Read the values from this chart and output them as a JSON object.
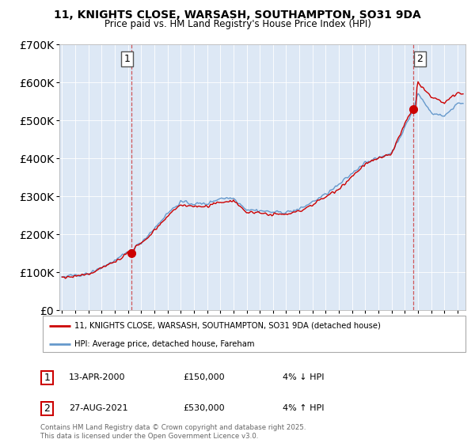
{
  "title_line1": "11, KNIGHTS CLOSE, WARSASH, SOUTHAMPTON, SO31 9DA",
  "title_line2": "Price paid vs. HM Land Registry's House Price Index (HPI)",
  "legend_label1": "11, KNIGHTS CLOSE, WARSASH, SOUTHAMPTON, SO31 9DA (detached house)",
  "legend_label2": "HPI: Average price, detached house, Fareham",
  "sale1_date": "13-APR-2000",
  "sale1_price": "£150,000",
  "sale1_hpi": "4% ↓ HPI",
  "sale2_date": "27-AUG-2021",
  "sale2_price": "£530,000",
  "sale2_hpi": "4% ↑ HPI",
  "footer": "Contains HM Land Registry data © Crown copyright and database right 2025.\nThis data is licensed under the Open Government Licence v3.0.",
  "red_color": "#cc0000",
  "blue_color": "#6699cc",
  "ylim_min": 0,
  "ylim_max": 700000,
  "background_color": "#ffffff",
  "plot_bg_color": "#dde8f5",
  "grid_color": "#ffffff",
  "sale1_year": 2000.28,
  "sale1_value": 150000,
  "sale2_year": 2021.65,
  "sale2_value": 530000
}
